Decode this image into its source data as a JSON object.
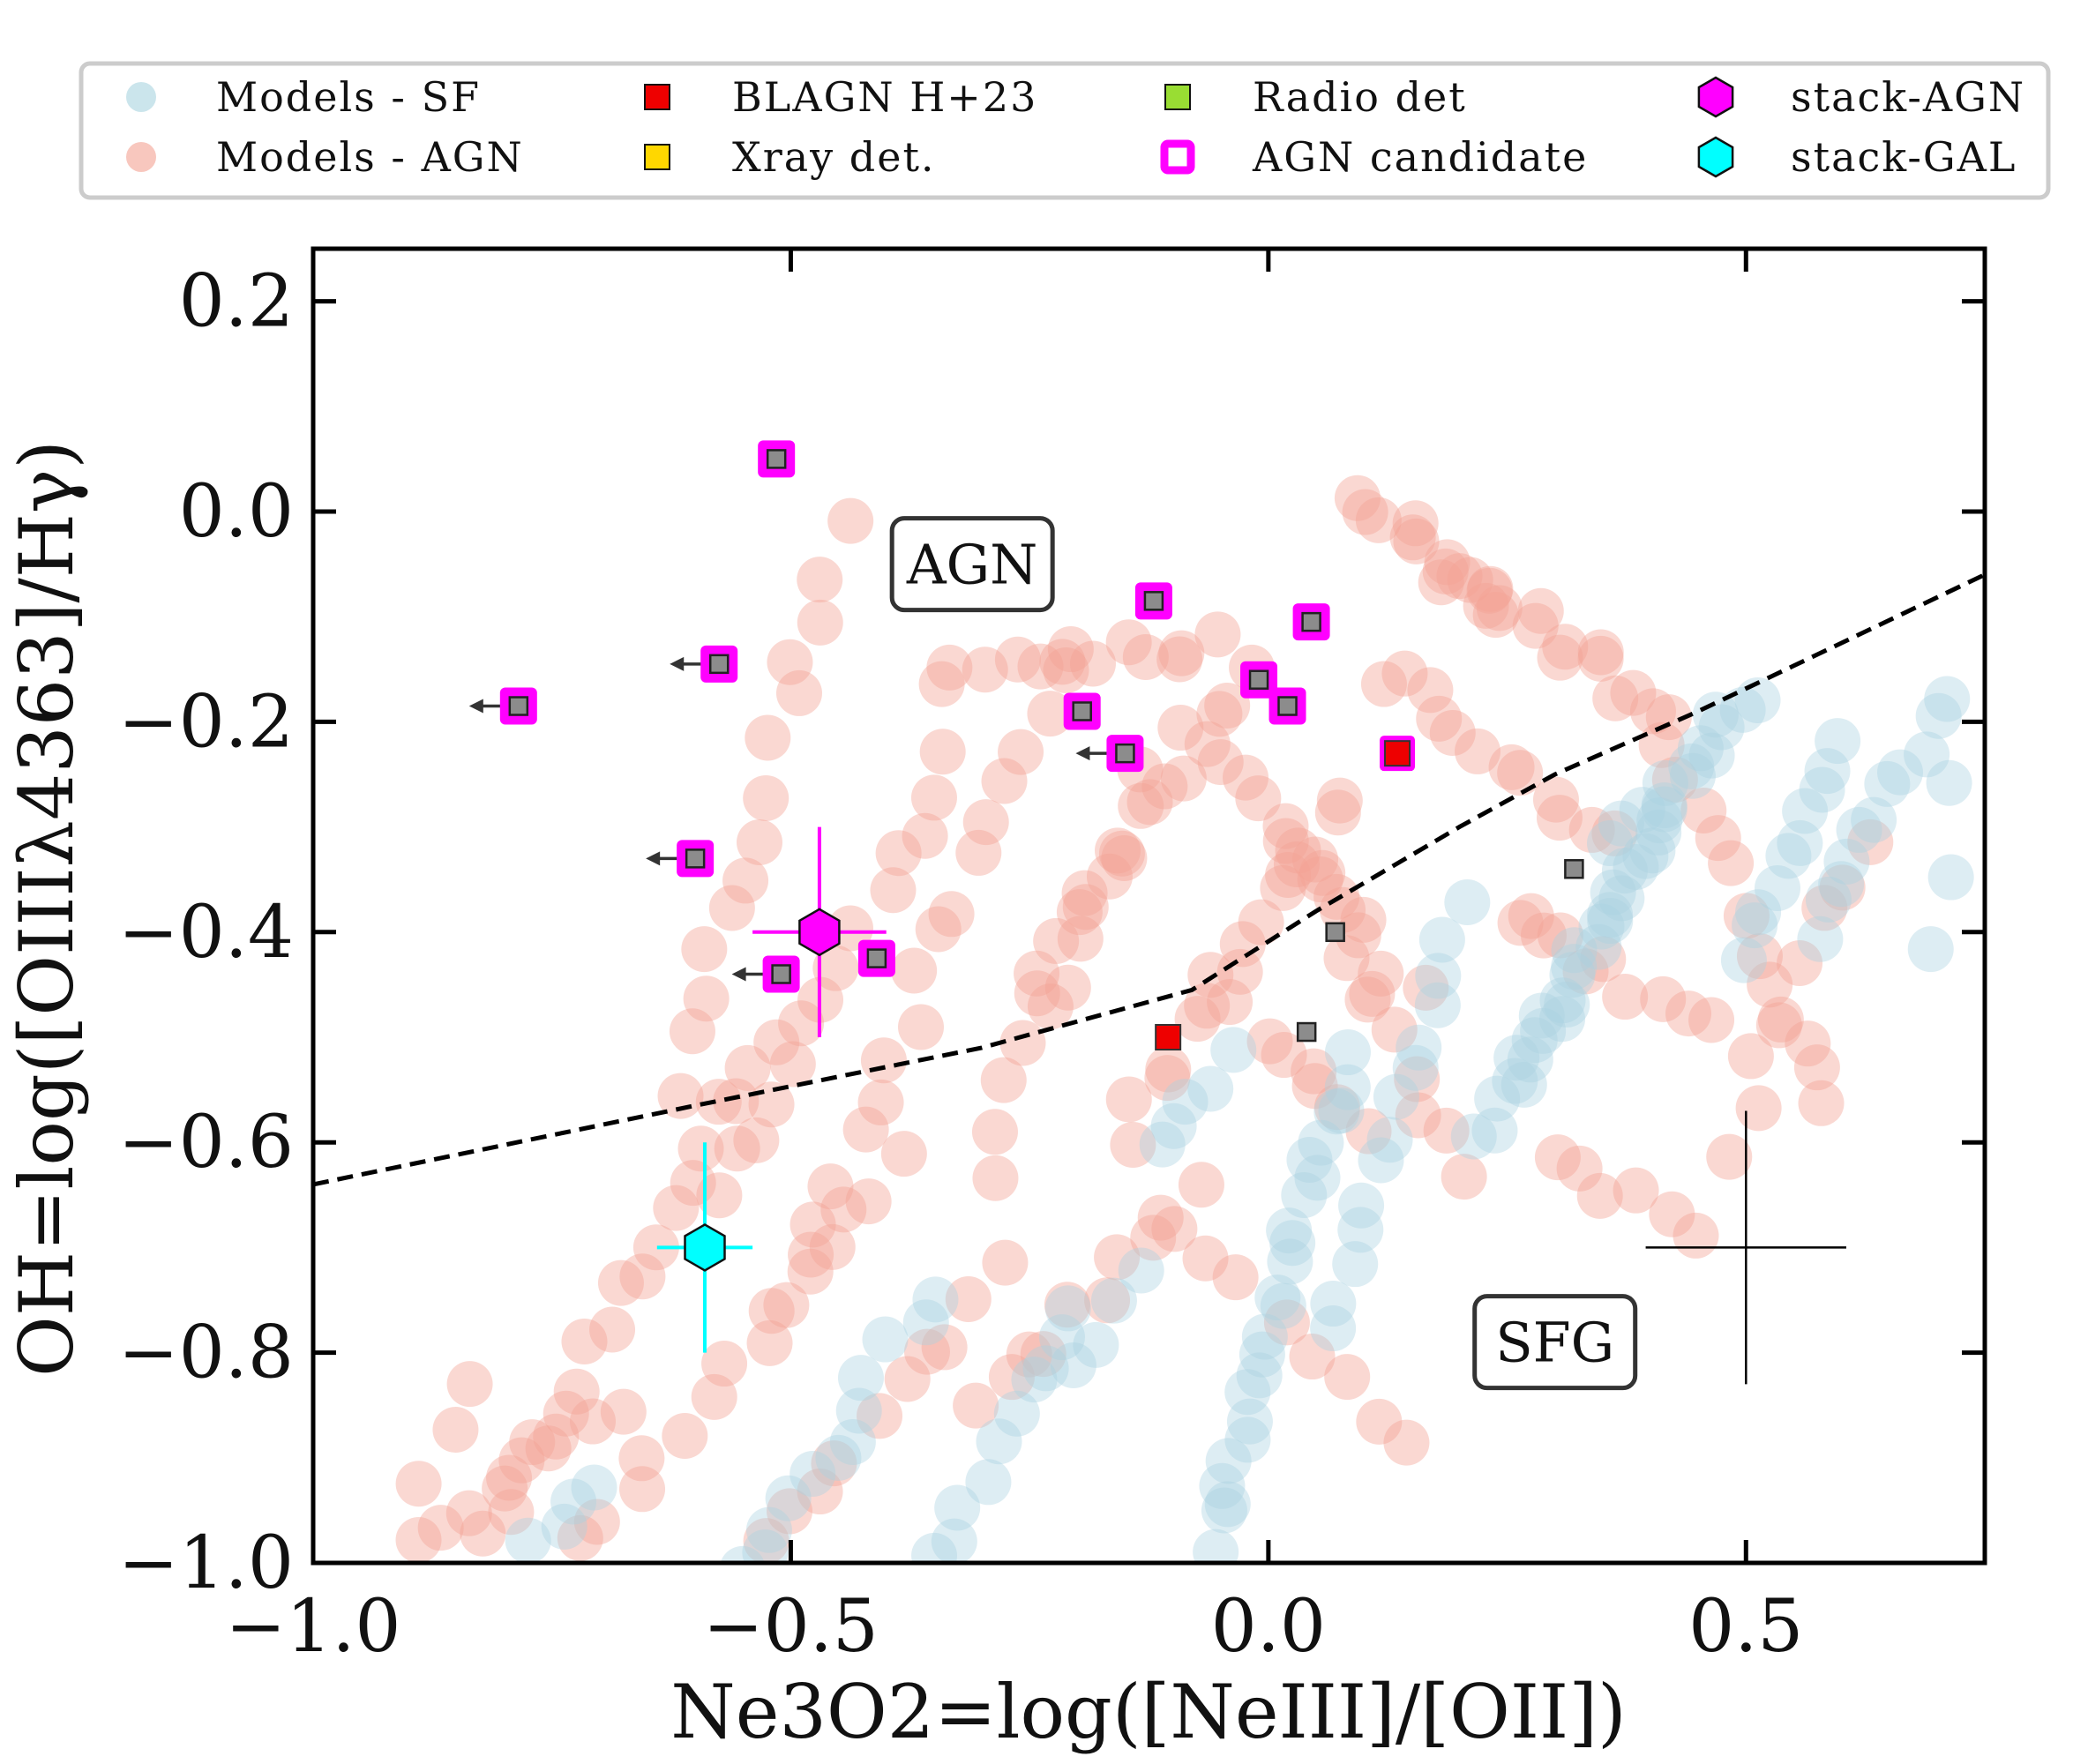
{
  "chart_data": {
    "type": "scatter",
    "xlabel": "Ne3O2=log([NeIII]/[OII])",
    "ylabel": "OH=log([OIIIλ4363]/Hγ)",
    "xlim": [
      -1.0,
      0.75
    ],
    "ylim": [
      -1.0,
      0.25
    ],
    "xticks": [
      -1.0,
      -0.5,
      0.0,
      0.5
    ],
    "xtick_labels": [
      "−1.0",
      "−0.5",
      "0.0",
      "0.5"
    ],
    "yticks": [
      -1.0,
      -0.8,
      -0.6,
      -0.4,
      -0.2,
      0.0,
      0.2
    ],
    "ytick_labels": [
      "−1.0",
      "−0.8",
      "−0.6",
      "−0.4",
      "−0.2",
      "0.0",
      "0.2"
    ],
    "colors": {
      "models_sf": "#a9d3e0",
      "models_agn": "#f4a293",
      "blagn": "#ee0000",
      "xray": "#ffd700",
      "radio": "#99dd33",
      "agn_candidate_edge": "#ff00ff",
      "stack_agn": "#ff00ff",
      "stack_gal": "#00ffff",
      "grey_marker": "#8c8c8c",
      "demarcation": "#000000"
    },
    "legend": [
      {
        "label": "Models - SF",
        "marker": "circle",
        "color": "#a9d3e0"
      },
      {
        "label": "Models - AGN",
        "marker": "circle",
        "color": "#f4a293"
      },
      {
        "label": "BLAGN H+23",
        "marker": "square",
        "color": "#ee0000"
      },
      {
        "label": "Xray det.",
        "marker": "square",
        "color": "#ffd700"
      },
      {
        "label": "Radio det",
        "marker": "square",
        "color": "#99dd33"
      },
      {
        "label": "AGN candidate",
        "marker": "open-square",
        "color": "#ff00ff"
      },
      {
        "label": "stack-AGN",
        "marker": "hexagon",
        "color": "#ff00ff"
      },
      {
        "label": "stack-GAL",
        "marker": "hexagon",
        "color": "#00ffff"
      }
    ],
    "region_labels": [
      {
        "text": "AGN",
        "x": -0.31,
        "y": -0.05
      },
      {
        "text": "SFG",
        "x": 0.3,
        "y": -0.79
      }
    ],
    "demarcation_line": {
      "style": "dashed",
      "x": [
        -1.0,
        -0.6,
        -0.3,
        -0.08,
        0.05,
        0.2,
        0.3,
        0.45,
        0.6,
        0.75
      ],
      "y": [
        -0.64,
        -0.565,
        -0.51,
        -0.455,
        -0.38,
        -0.3,
        -0.25,
        -0.19,
        -0.125,
        -0.06
      ]
    },
    "agn_candidates": [
      {
        "x": -0.515,
        "y": 0.05,
        "upper_limit": false
      },
      {
        "x": -0.785,
        "y": -0.185,
        "upper_limit": true
      },
      {
        "x": -0.575,
        "y": -0.145,
        "upper_limit": true
      },
      {
        "x": -0.12,
        "y": -0.085,
        "upper_limit": false
      },
      {
        "x": 0.045,
        "y": -0.105,
        "upper_limit": false
      },
      {
        "x": -0.195,
        "y": -0.19,
        "upper_limit": false
      },
      {
        "x": -0.15,
        "y": -0.23,
        "upper_limit": true
      },
      {
        "x": -0.01,
        "y": -0.16,
        "upper_limit": false
      },
      {
        "x": 0.02,
        "y": -0.185,
        "upper_limit": false
      },
      {
        "x": -0.6,
        "y": -0.33,
        "upper_limit": true
      },
      {
        "x": -0.51,
        "y": -0.44,
        "upper_limit": true
      },
      {
        "x": -0.41,
        "y": -0.425,
        "upper_limit": false
      }
    ],
    "blagn_h23": [
      {
        "x": 0.135,
        "y": -0.23,
        "agn_candidate": true
      },
      {
        "x": -0.105,
        "y": -0.5,
        "agn_candidate": false
      }
    ],
    "other_sources": [
      {
        "x": 0.07,
        "y": -0.4
      },
      {
        "x": 0.04,
        "y": -0.495
      },
      {
        "x": 0.32,
        "y": -0.34
      }
    ],
    "stack_agn": {
      "x": -0.47,
      "y": -0.4,
      "xerr": 0.07,
      "yerr": 0.1
    },
    "stack_gal": {
      "x": -0.59,
      "y": -0.7,
      "xerr": 0.05,
      "yerr": 0.1
    },
    "typical_error": {
      "x": 0.5,
      "y": -0.7,
      "xerr": 0.105,
      "yerr": 0.13
    },
    "models_agn_bands": [
      {
        "x1": -0.62,
        "y1": -0.55,
        "x2": -0.45,
        "y2": -0.02,
        "n": 14
      },
      {
        "x1": -0.82,
        "y1": -0.97,
        "x2": -0.52,
        "y2": -0.49,
        "n": 18
      },
      {
        "x1": -0.86,
        "y1": -0.96,
        "x2": -0.68,
        "y2": -0.85,
        "n": 8
      },
      {
        "x1": -0.72,
        "y1": -0.99,
        "x2": -0.38,
        "y2": -0.62,
        "n": 14
      },
      {
        "x1": -0.52,
        "y1": -0.99,
        "x2": -0.28,
        "y2": -0.72,
        "n": 10
      },
      {
        "x1": -0.58,
        "y1": -0.65,
        "x2": -0.33,
        "y2": -0.24,
        "n": 14
      },
      {
        "x1": -0.5,
        "y1": -0.74,
        "x2": -0.2,
        "y2": -0.12,
        "n": 18
      },
      {
        "x1": -0.35,
        "y1": -0.15,
        "x2": -0.05,
        "y2": -0.13,
        "n": 12
      },
      {
        "x1": -0.3,
        "y1": -0.62,
        "x2": -0.12,
        "y2": -0.25,
        "n": 12
      },
      {
        "x1": -0.3,
        "y1": -0.86,
        "x2": -0.08,
        "y2": -0.65,
        "n": 10
      },
      {
        "x1": -0.25,
        "y1": -0.45,
        "x2": -0.02,
        "y2": -0.15,
        "n": 14
      },
      {
        "x1": -0.15,
        "y1": -0.6,
        "x2": 0.08,
        "y2": -0.26,
        "n": 14
      },
      {
        "x1": -0.08,
        "y1": -0.22,
        "x2": 0.15,
        "y2": -0.45,
        "n": 12
      },
      {
        "x1": 0.02,
        "y1": -0.3,
        "x2": 0.2,
        "y2": -0.62,
        "n": 12
      },
      {
        "x1": 0.1,
        "y1": 0.02,
        "x2": 0.25,
        "y2": -0.1,
        "n": 12
      },
      {
        "x1": 0.2,
        "y1": -0.05,
        "x2": 0.42,
        "y2": -0.2,
        "n": 14
      },
      {
        "x1": 0.12,
        "y1": -0.15,
        "x2": 0.35,
        "y2": -0.32,
        "n": 12
      },
      {
        "x1": 0.25,
        "y1": -0.38,
        "x2": 0.45,
        "y2": -0.48,
        "n": 10
      },
      {
        "x1": 0.42,
        "y1": -0.22,
        "x2": 0.58,
        "y2": -0.57,
        "n": 12
      },
      {
        "x1": 0.48,
        "y1": -0.6,
        "x2": 0.62,
        "y2": -0.3,
        "n": 8
      },
      {
        "x1": 0.3,
        "y1": -0.6,
        "x2": 0.45,
        "y2": -0.7,
        "n": 6
      },
      {
        "x1": -0.1,
        "y1": -0.68,
        "x2": 0.15,
        "y2": -0.88,
        "n": 8
      },
      {
        "x1": -0.9,
        "y1": -0.97,
        "x2": -0.84,
        "y2": -0.84,
        "n": 4
      },
      {
        "x1": -0.05,
        "y1": -0.45,
        "x2": 0.1,
        "y2": -0.6,
        "n": 8
      }
    ],
    "models_sf_bands": [
      {
        "x1": -0.06,
        "y1": -0.98,
        "x2": 0.08,
        "y2": -0.52,
        "n": 24
      },
      {
        "x1": 0.06,
        "y1": -0.78,
        "x2": 0.2,
        "y2": -0.38,
        "n": 14
      },
      {
        "x1": 0.22,
        "y1": -0.6,
        "x2": 0.4,
        "y2": -0.3,
        "n": 16
      },
      {
        "x1": 0.26,
        "y1": -0.55,
        "x2": 0.46,
        "y2": -0.2,
        "n": 16
      },
      {
        "x1": 0.35,
        "y1": -0.32,
        "x2": 0.52,
        "y2": -0.18,
        "n": 10
      },
      {
        "x1": 0.5,
        "y1": -0.42,
        "x2": 0.6,
        "y2": -0.22,
        "n": 10
      },
      {
        "x1": 0.57,
        "y1": -0.4,
        "x2": 0.7,
        "y2": -0.2,
        "n": 10
      },
      {
        "x1": 0.7,
        "y1": -0.42,
        "x2": 0.72,
        "y2": -0.18,
        "n": 4
      },
      {
        "x1": -0.35,
        "y1": -1.0,
        "x2": -0.2,
        "y2": -0.75,
        "n": 10
      },
      {
        "x1": -0.55,
        "y1": -1.0,
        "x2": -0.42,
        "y2": -0.86,
        "n": 8
      },
      {
        "x1": -0.42,
        "y1": -0.82,
        "x2": -0.34,
        "y2": -0.74,
        "n": 4
      },
      {
        "x1": -0.2,
        "y1": -0.82,
        "x2": -0.14,
        "y2": -0.72,
        "n": 4
      },
      {
        "x1": -0.12,
        "y1": -0.6,
        "x2": -0.04,
        "y2": -0.52,
        "n": 5
      },
      {
        "x1": -0.77,
        "y1": -0.98,
        "x2": -0.7,
        "y2": -0.93,
        "n": 4
      }
    ]
  }
}
